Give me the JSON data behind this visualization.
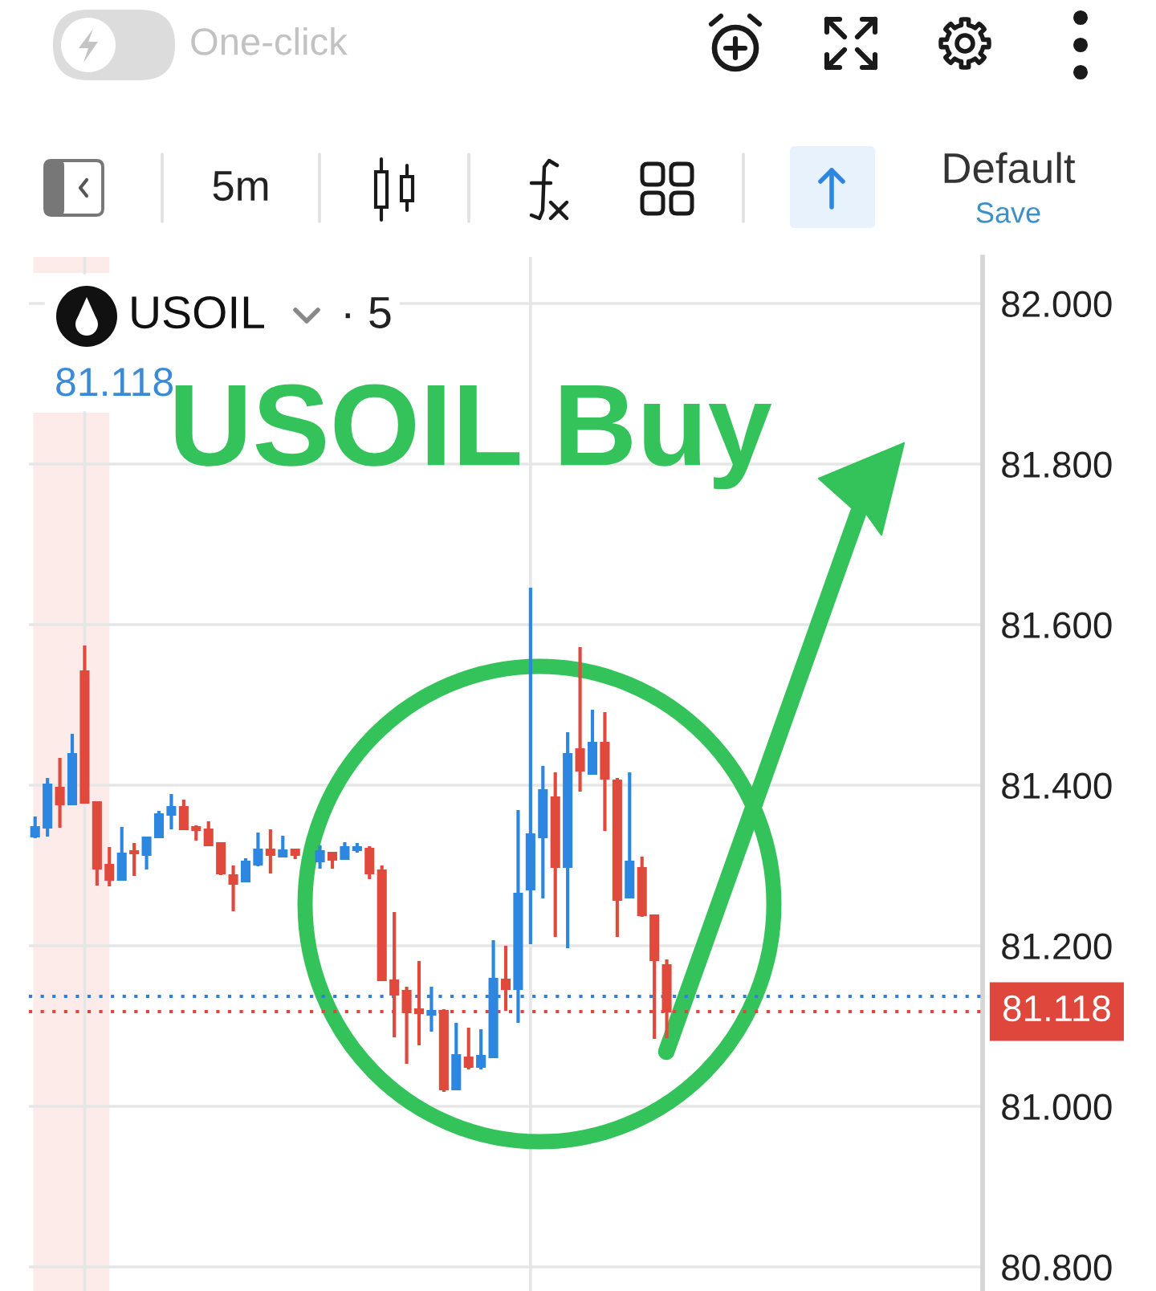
{
  "chart_data": {
    "type": "candlestick",
    "categories": [
      null,
      null,
      null,
      null,
      null,
      null,
      null,
      null,
      null,
      null,
      null,
      null,
      null,
      null,
      null,
      null,
      null,
      null,
      null,
      null,
      null,
      null,
      null,
      null,
      null,
      null,
      null,
      null,
      null,
      null,
      null,
      null,
      null,
      null,
      null,
      null,
      null,
      null,
      null,
      null,
      null,
      null,
      null,
      null,
      null,
      null,
      null,
      null,
      null,
      null,
      null,
      null,
      null,
      null,
      null,
      null,
      null,
      null,
      null,
      null,
      null,
      null,
      null,
      null,
      null,
      null,
      null,
      null,
      null,
      null,
      null,
      null,
      null,
      null,
      null,
      null,
      null
    ],
    "ohlc": [
      [
        81.336,
        81.361,
        81.334,
        81.348
      ],
      [
        81.347,
        81.409,
        81.336,
        81.401
      ],
      [
        81.397,
        81.434,
        81.347,
        81.376
      ],
      [
        81.376,
        81.464,
        81.376,
        81.439
      ],
      [
        81.542,
        81.574,
        81.378,
        81.378
      ],
      [
        81.379,
        81.379,
        81.275,
        81.296
      ],
      [
        81.301,
        81.323,
        81.274,
        81.282
      ],
      [
        81.282,
        81.348,
        81.282,
        81.315
      ],
      [
        81.318,
        81.328,
        81.287,
        81.315
      ],
      [
        81.313,
        81.336,
        81.295,
        81.335
      ],
      [
        81.335,
        81.368,
        81.335,
        81.364
      ],
      [
        81.363,
        81.389,
        81.345,
        81.373
      ],
      [
        81.373,
        81.382,
        81.345,
        81.345
      ],
      [
        81.348,
        81.35,
        81.331,
        81.344
      ],
      [
        81.345,
        81.355,
        81.325,
        81.325
      ],
      [
        81.328,
        81.328,
        81.288,
        81.29
      ],
      [
        81.288,
        81.3,
        81.243,
        81.277
      ],
      [
        81.28,
        81.309,
        81.28,
        81.305
      ],
      [
        81.301,
        81.341,
        81.299,
        81.32
      ],
      [
        81.32,
        81.345,
        81.29,
        81.313
      ],
      [
        81.311,
        81.337,
        81.311,
        81.319
      ],
      [
        81.32,
        81.321,
        81.308,
        81.313
      ],
      null,
      [
        81.305,
        81.325,
        81.296,
        81.318
      ],
      [
        81.316,
        81.317,
        81.296,
        81.307
      ],
      [
        81.308,
        81.329,
        81.308,
        81.323
      ],
      [
        81.319,
        81.328,
        81.316,
        81.323
      ],
      [
        81.321,
        81.324,
        81.283,
        81.29
      ],
      [
        81.294,
        81.3,
        81.157,
        81.157
      ],
      [
        81.157,
        81.242,
        81.086,
        81.139
      ],
      [
        81.144,
        81.149,
        81.053,
        81.117
      ],
      [
        81.121,
        81.181,
        81.076,
        81.116
      ],
      [
        81.114,
        81.149,
        81.093,
        81.119
      ],
      [
        81.119,
        81.121,
        81.018,
        81.021
      ],
      [
        81.021,
        81.104,
        81.02,
        81.064
      ],
      [
        81.061,
        81.098,
        81.046,
        81.049
      ],
      [
        81.049,
        81.096,
        81.046,
        81.063
      ],
      [
        81.061,
        81.207,
        81.061,
        81.159
      ],
      [
        81.158,
        81.2,
        81.119,
        81.146
      ],
      [
        81.146,
        81.369,
        81.104,
        81.265
      ],
      [
        81.27,
        81.646,
        81.202,
        81.339
      ],
      [
        81.335,
        81.424,
        81.259,
        81.394
      ],
      [
        81.385,
        81.416,
        81.211,
        81.298
      ],
      [
        81.298,
        81.466,
        81.197,
        81.439
      ],
      [
        81.445,
        81.572,
        81.392,
        81.418
      ],
      [
        81.414,
        81.494,
        81.414,
        81.453
      ],
      [
        81.453,
        81.491,
        81.343,
        81.408
      ],
      [
        81.406,
        81.409,
        81.211,
        81.257
      ],
      [
        81.26,
        81.416,
        81.26,
        81.305
      ],
      [
        81.297,
        81.311,
        81.236,
        81.238
      ],
      [
        81.238,
        81.239,
        81.084,
        81.182
      ],
      [
        81.176,
        81.183,
        81.085,
        81.118
      ],
      null,
      null,
      null,
      null,
      null,
      null,
      null,
      null,
      null,
      null,
      null,
      null,
      null,
      null,
      null,
      null,
      null,
      null,
      null,
      null,
      null,
      null,
      null,
      null,
      null
    ],
    "colors": [
      "#2d87e0",
      "#2d87e0",
      "#e04a3d",
      "#2d87e0",
      "#e04a3d",
      "#e04a3d",
      "#e04a3d",
      "#2d87e0",
      "#e04a3d",
      "#2d87e0",
      "#2d87e0",
      "#2d87e0",
      "#e04a3d",
      "#e04a3d",
      "#e04a3d",
      "#e04a3d",
      "#e04a3d",
      "#2d87e0",
      "#2d87e0",
      "#e04a3d",
      "#2d87e0",
      "#e04a3d",
      null,
      "#2d87e0",
      "#e04a3d",
      "#2d87e0",
      "#2d87e0",
      "#e04a3d",
      "#e04a3d",
      "#e04a3d",
      "#e04a3d",
      "#e04a3d",
      "#2d87e0",
      "#e04a3d",
      "#2d87e0",
      "#e04a3d",
      "#2d87e0",
      "#2d87e0",
      "#e04a3d",
      "#2d87e0",
      "#2d87e0",
      "#2d87e0",
      "#e04a3d",
      "#2d87e0",
      "#e04a3d",
      "#2d87e0",
      "#e04a3d",
      "#e04a3d",
      "#2d87e0",
      "#e04a3d",
      "#e04a3d",
      "#e04a3d",
      null,
      null,
      null,
      null,
      null,
      null,
      null,
      null,
      null,
      null,
      null,
      null,
      null,
      null,
      null,
      null,
      null,
      null,
      null,
      null,
      null,
      null,
      null,
      null,
      null
    ],
    "ylim": [
      80.77,
      82.058
    ],
    "yticks": [
      {
        "value": 80.8,
        "label": "80.800"
      },
      {
        "value": 81.0,
        "label": "81.000"
      },
      {
        "value": 81.2,
        "label": "81.200"
      },
      {
        "value": 81.4,
        "label": "81.400"
      },
      {
        "value": 81.6,
        "label": "81.600"
      },
      {
        "value": 81.8,
        "label": "81.800"
      },
      {
        "value": 82.0,
        "label": "82.000"
      }
    ],
    "grid": true,
    "tick_labels": "y",
    "ref_lines": [
      {
        "axis": "y",
        "value": 81.137,
        "color": "#2f80d9",
        "line_style": "dotted"
      },
      {
        "axis": "y",
        "value": 81.118,
        "label": "81.118",
        "color": "#e0473c",
        "line_style": "dotted"
      }
    ],
    "annotations": [
      "One-click",
      "5m",
      "Default",
      "Save",
      "USOIL",
      "· 5",
      "81.118",
      "USOIL Buy"
    ]
  }
}
